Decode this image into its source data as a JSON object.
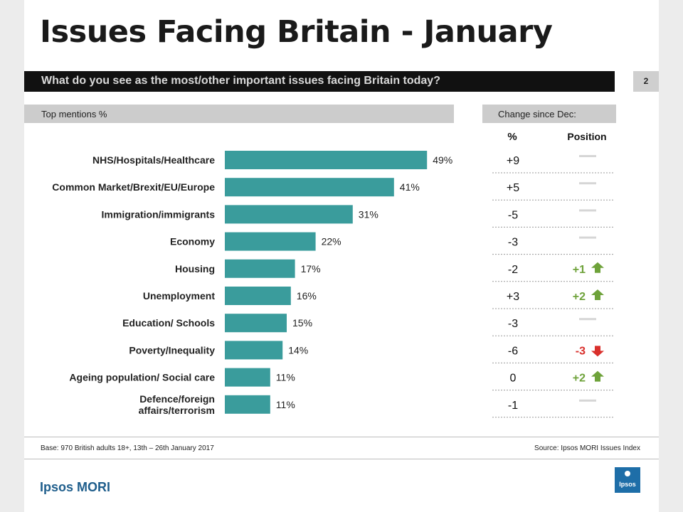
{
  "title": "Issues Facing Britain - January",
  "question": "What do you see as the most/other important issues facing Britain today?",
  "page_number": "2",
  "headers": {
    "top_mentions": "Top mentions %",
    "change_since": "Change since Dec:",
    "pct_col": "%",
    "position_col": "Position"
  },
  "footer": {
    "base": "Base: 970 British adults 18+, 13th – 26th January 2017",
    "source": "Source: Ipsos MORI Issues Index",
    "brand": "Ipsos MORI",
    "logo_text": "Ipsos"
  },
  "colors": {
    "bar": "#3a9c9c",
    "dash": "#d6d6d6",
    "up": "#6ea23a",
    "down": "#d9302c"
  },
  "chart_data": {
    "type": "bar",
    "orientation": "horizontal",
    "title": "Top mentions %",
    "categories": [
      "NHS/Hospitals/Healthcare",
      "Common Market/Brexit/EU/Europe",
      "Immigration/immigrants",
      "Economy",
      "Housing",
      "Unemployment",
      "Education/ Schools",
      "Poverty/Inequality",
      "Ageing population/ Social care",
      "Defence/foreign affairs/terrorism"
    ],
    "category_lines": [
      [
        "NHS/Hospitals/Healthcare"
      ],
      [
        "Common Market/Brexit/EU/Europe"
      ],
      [
        "Immigration/immigrants"
      ],
      [
        "Economy"
      ],
      [
        "Housing"
      ],
      [
        "Unemployment"
      ],
      [
        "Education/ Schools"
      ],
      [
        "Poverty/Inequality"
      ],
      [
        "Ageing population/ Social care"
      ],
      [
        "Defence/foreign",
        "affairs/terrorism"
      ]
    ],
    "values": [
      49,
      41,
      31,
      22,
      17,
      16,
      15,
      14,
      11,
      11
    ],
    "value_labels": [
      "49%",
      "41%",
      "31%",
      "22%",
      "17%",
      "16%",
      "15%",
      "14%",
      "11%",
      "11%"
    ],
    "xlim": [
      0,
      100
    ],
    "change_pct": [
      "+9",
      "+5",
      "-5",
      "-3",
      "-2",
      "+3",
      "-3",
      "-6",
      "0",
      "-1"
    ],
    "position_change": [
      {
        "label": "",
        "dir": "none"
      },
      {
        "label": "",
        "dir": "none"
      },
      {
        "label": "",
        "dir": "none"
      },
      {
        "label": "",
        "dir": "none"
      },
      {
        "label": "+1",
        "dir": "up"
      },
      {
        "label": "+2",
        "dir": "up"
      },
      {
        "label": "",
        "dir": "none"
      },
      {
        "label": "-3",
        "dir": "down"
      },
      {
        "label": "+2",
        "dir": "up"
      },
      {
        "label": "",
        "dir": "none"
      }
    ]
  }
}
